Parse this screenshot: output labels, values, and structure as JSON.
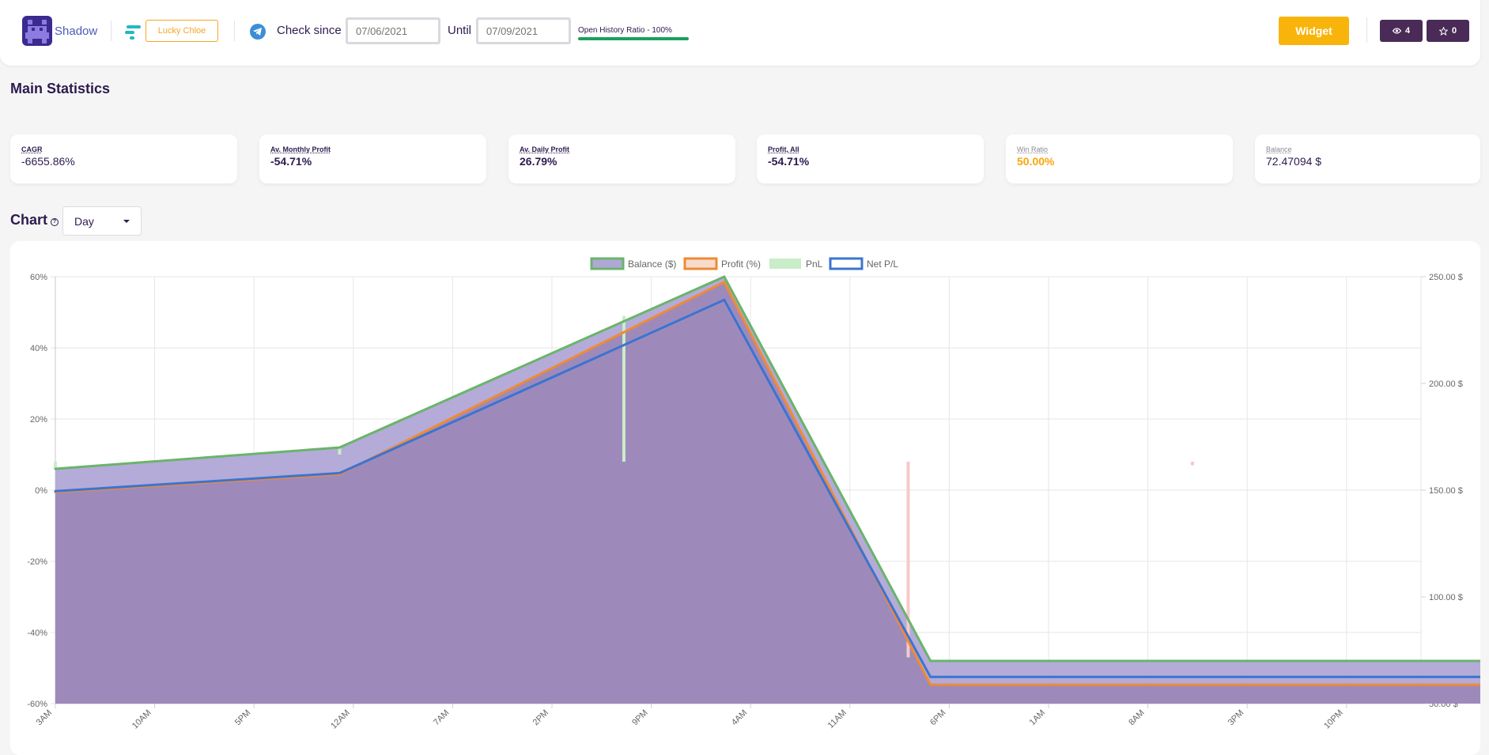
{
  "header": {
    "user_name": "Shadow",
    "account_label": "Lucky Chloe",
    "check_since_label": "Check since",
    "since_placeholder": "07/06/2021",
    "until_label": "Until",
    "until_placeholder": "07/09/2021",
    "history_ratio_label": "Open History Ratio - 100%",
    "history_ratio": 1.0,
    "widget_label": "Widget",
    "views_count": "4",
    "stars_count": "0"
  },
  "main_statistics": {
    "title": "Main Statistics",
    "cards": [
      {
        "label": "CAGR",
        "value": "-6655.86%"
      },
      {
        "label": "Av. Monthly Profit",
        "value": "-54.71%"
      },
      {
        "label": "Av. Daily Profit",
        "value": "26.79%"
      },
      {
        "label": "Profit, All",
        "value": "-54.71%"
      },
      {
        "label": "Win Ratio",
        "value": "50.00%"
      },
      {
        "label": "Balance",
        "value": "72.47094 $"
      }
    ]
  },
  "chart_section": {
    "title": "Chart",
    "period_value": "Day"
  },
  "chart_data": {
    "type": "line",
    "legend": [
      "Balance ($)",
      "Profit (%)",
      "PnL",
      "Net P/L"
    ],
    "legend_position": "top",
    "colors": {
      "balance": "#6ab46a",
      "profit": "#f08a34",
      "pnl": "#c9ecc9",
      "netpl": "#3b74d0",
      "fill": "#9a86b8"
    },
    "x_ticks": [
      "3AM",
      "10AM",
      "5PM",
      "12AM",
      "7AM",
      "2PM",
      "9PM",
      "4AM",
      "11AM",
      "6PM",
      "1AM",
      "8AM",
      "3PM",
      "10PM"
    ],
    "y_left_ticks": [
      "60%",
      "40%",
      "20%",
      "0%",
      "-20%",
      "-40%",
      "-60%"
    ],
    "y_left_range": [
      -60,
      60
    ],
    "y_right_ticks": [
      "250.00 $",
      "200.00 $",
      "150.00 $",
      "100.00 $",
      "50.00 $"
    ],
    "y_right_range": [
      50,
      250
    ],
    "grid": true,
    "x_hours": [
      0,
      51,
      120,
      157,
      163,
      300
    ],
    "series": [
      {
        "name": "Balance ($)",
        "axis": "right",
        "values": [
          160,
          170,
          250,
          70,
          70,
          70
        ]
      },
      {
        "name": "Profit (%)",
        "axis": "left",
        "values": [
          -0.5,
          4.5,
          58.5,
          -54.7,
          -54.7,
          -54.7
        ]
      },
      {
        "name": "Net P/L",
        "axis": "left",
        "values": [
          -0.3,
          4.8,
          53.5,
          -52.5,
          -52.5,
          -52.5
        ]
      }
    ],
    "pnl_bars": [
      {
        "hour": 0,
        "from": 8,
        "to": 6,
        "color": "#c9ecc9"
      },
      {
        "hour": 51,
        "from": 12,
        "to": 10,
        "color": "#c9ecc9"
      },
      {
        "hour": 102,
        "from": 49,
        "to": 8,
        "color": "#c9ecc9"
      },
      {
        "hour": 153,
        "from": 8,
        "to": -47,
        "color": "#f5c9c9"
      },
      {
        "hour": 204,
        "from": 8,
        "to": 7,
        "color": "#f5c9c9"
      }
    ]
  }
}
